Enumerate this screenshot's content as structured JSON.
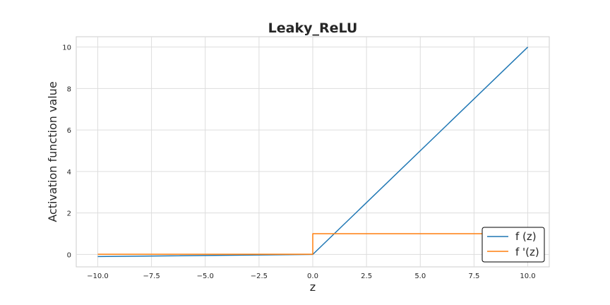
{
  "chart_data": {
    "type": "line",
    "title": "Leaky_ReLU",
    "xlabel": "z",
    "ylabel": "Activation function value",
    "xlim": [
      -11.0,
      11.0
    ],
    "ylim": [
      -0.6,
      10.5
    ],
    "xticks": [
      -10.0,
      -7.5,
      -5.0,
      -2.5,
      0.0,
      2.5,
      5.0,
      7.5,
      10.0
    ],
    "xtick_labels": [
      "−10.0",
      "−7.5",
      "−5.0",
      "−2.5",
      "0.0",
      "2.5",
      "5.0",
      "7.5",
      "10.0"
    ],
    "yticks": [
      0,
      2,
      4,
      6,
      8,
      10
    ],
    "ytick_labels": [
      "0",
      "2",
      "4",
      "6",
      "8",
      "10"
    ],
    "grid": true,
    "legend_position": "lower-right",
    "series": [
      {
        "name": "f (z)",
        "color": "#1f77b4",
        "x": [
          -10.0,
          0.0,
          10.0
        ],
        "y": [
          -0.1,
          0.0,
          10.0
        ]
      },
      {
        "name": "f '(z)",
        "color": "#ff7f0e",
        "x": [
          -10.0,
          0.0,
          0.0,
          10.0
        ],
        "y": [
          0.01,
          0.01,
          1.0,
          1.0
        ]
      }
    ]
  }
}
